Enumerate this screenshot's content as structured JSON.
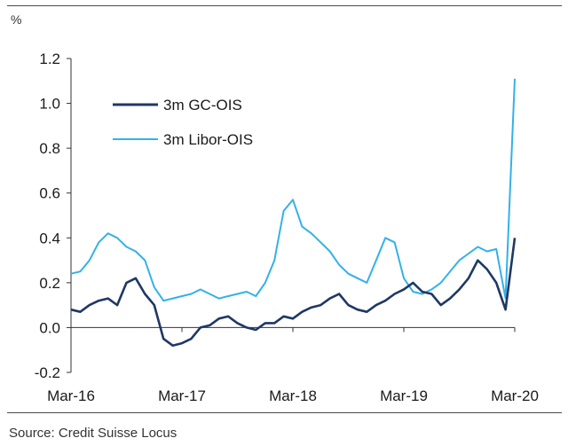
{
  "header": {
    "unit": "%"
  },
  "footer": {
    "source": "Source: Credit Suisse Locus"
  },
  "chart_data": {
    "type": "line",
    "title": "",
    "xlabel": "",
    "ylabel": "%",
    "ylim": [
      -0.2,
      1.2
    ],
    "yticks": [
      "-0.2",
      "0.0",
      "0.2",
      "0.4",
      "0.6",
      "0.8",
      "1.0",
      "1.2"
    ],
    "xtick_labels": [
      "Mar-16",
      "Mar-17",
      "Mar-18",
      "Mar-19",
      "Mar-20"
    ],
    "xlim": [
      "2016-03",
      "2020-03"
    ],
    "grid": false,
    "legend_position": "upper-left",
    "series": [
      {
        "name": "3m GC-OIS",
        "color": "#1f3864",
        "x": [
          "2016-03",
          "2016-04",
          "2016-05",
          "2016-06",
          "2016-07",
          "2016-08",
          "2016-09",
          "2016-10",
          "2016-11",
          "2016-12",
          "2017-01",
          "2017-02",
          "2017-03",
          "2017-04",
          "2017-05",
          "2017-06",
          "2017-07",
          "2017-08",
          "2017-09",
          "2017-10",
          "2017-11",
          "2017-12",
          "2018-01",
          "2018-02",
          "2018-03",
          "2018-04",
          "2018-05",
          "2018-06",
          "2018-07",
          "2018-08",
          "2018-09",
          "2018-10",
          "2018-11",
          "2018-12",
          "2019-01",
          "2019-02",
          "2019-03",
          "2019-04",
          "2019-05",
          "2019-06",
          "2019-07",
          "2019-08",
          "2019-09",
          "2019-10",
          "2019-11",
          "2019-12",
          "2020-01",
          "2020-02",
          "2020-03"
        ],
        "values": [
          0.08,
          0.07,
          0.1,
          0.12,
          0.13,
          0.1,
          0.2,
          0.22,
          0.15,
          0.1,
          -0.05,
          -0.08,
          -0.07,
          -0.05,
          0.0,
          0.01,
          0.04,
          0.05,
          0.02,
          0.0,
          -0.01,
          0.02,
          0.02,
          0.05,
          0.04,
          0.07,
          0.09,
          0.1,
          0.13,
          0.15,
          0.1,
          0.08,
          0.07,
          0.1,
          0.12,
          0.15,
          0.17,
          0.2,
          0.16,
          0.15,
          0.1,
          0.13,
          0.17,
          0.22,
          0.3,
          0.26,
          0.2,
          0.08,
          0.4
        ]
      },
      {
        "name": "3m Libor-OIS",
        "color": "#33b1e8",
        "x": [
          "2016-03",
          "2016-04",
          "2016-05",
          "2016-06",
          "2016-07",
          "2016-08",
          "2016-09",
          "2016-10",
          "2016-11",
          "2016-12",
          "2017-01",
          "2017-02",
          "2017-03",
          "2017-04",
          "2017-05",
          "2017-06",
          "2017-07",
          "2017-08",
          "2017-09",
          "2017-10",
          "2017-11",
          "2017-12",
          "2018-01",
          "2018-02",
          "2018-03",
          "2018-04",
          "2018-05",
          "2018-06",
          "2018-07",
          "2018-08",
          "2018-09",
          "2018-10",
          "2018-11",
          "2018-12",
          "2019-01",
          "2019-02",
          "2019-03",
          "2019-04",
          "2019-05",
          "2019-06",
          "2019-07",
          "2019-08",
          "2019-09",
          "2019-10",
          "2019-11",
          "2019-12",
          "2020-01",
          "2020-02",
          "2020-03"
        ],
        "values": [
          0.24,
          0.25,
          0.3,
          0.38,
          0.42,
          0.4,
          0.36,
          0.34,
          0.3,
          0.18,
          0.12,
          0.13,
          0.14,
          0.15,
          0.17,
          0.15,
          0.13,
          0.14,
          0.15,
          0.16,
          0.14,
          0.2,
          0.3,
          0.52,
          0.57,
          0.45,
          0.42,
          0.38,
          0.34,
          0.28,
          0.24,
          0.22,
          0.2,
          0.3,
          0.4,
          0.38,
          0.22,
          0.16,
          0.15,
          0.17,
          0.2,
          0.25,
          0.3,
          0.33,
          0.36,
          0.34,
          0.35,
          0.13,
          1.11
        ]
      }
    ]
  }
}
